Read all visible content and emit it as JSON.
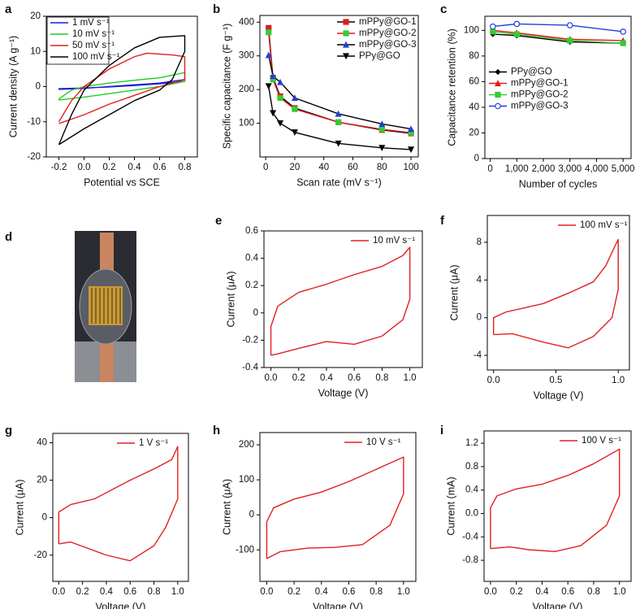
{
  "chart_data": [
    {
      "type": "line",
      "label": "a",
      "xlabel": "Potential vs SCE",
      "ylabel": "Current density (A g⁻¹)",
      "xlim": [
        -0.3,
        0.9
      ],
      "xticks": [
        -0.2,
        {
          "value": 0,
          "label": "0.0"
        },
        0.2,
        0.4,
        0.6,
        0.8
      ],
      "ylim": [
        -20,
        20
      ],
      "yticks": [
        -20,
        -10,
        0,
        10,
        20
      ],
      "legend": "upper left",
      "series": [
        {
          "name": "1 mV s⁻¹",
          "color": "#1a1adc",
          "x": [
            -0.2,
            0,
            0.2,
            0.4,
            0.6,
            0.8,
            0.8,
            0.6,
            0.4,
            0.2,
            0,
            -0.2,
            -0.2
          ],
          "values": [
            -0.8,
            -0.5,
            0,
            0.5,
            1,
            2,
            1.5,
            0.8,
            0.3,
            -0.1,
            -0.4,
            -0.6,
            -0.8
          ]
        },
        {
          "name": "10 mV s⁻¹",
          "color": "#22cc22",
          "x": [
            -0.2,
            -0.1,
            0,
            0.2,
            0.4,
            0.6,
            0.8,
            0.8,
            0.6,
            0.4,
            0.2,
            0,
            -0.2,
            -0.2
          ],
          "values": [
            -3.5,
            -1,
            0,
            1,
            1.8,
            2.5,
            4,
            1.5,
            0,
            -1,
            -2,
            -3,
            -3.8,
            -3.5
          ]
        },
        {
          "name": "50 mV s⁻¹",
          "color": "#e02020",
          "x": [
            -0.2,
            -0.1,
            0,
            0.2,
            0.4,
            0.5,
            0.7,
            0.8,
            0.8,
            0.6,
            0.4,
            0.2,
            0,
            -0.2
          ],
          "values": [
            -10,
            -4,
            0,
            5,
            8.5,
            9.5,
            9,
            8.5,
            2,
            0,
            -2.5,
            -5,
            -8,
            -10.5
          ]
        },
        {
          "name": "100 mV s⁻¹",
          "color": "#000000",
          "x": [
            -0.2,
            -0.1,
            0,
            0.2,
            0.4,
            0.6,
            0.8,
            0.8,
            0.7,
            0.6,
            0.4,
            0.2,
            0,
            -0.2
          ],
          "values": [
            -16.5,
            -8,
            -1,
            6,
            11,
            14,
            14.5,
            10,
            2,
            -1,
            -4,
            -8,
            -12,
            -16.5
          ]
        }
      ]
    },
    {
      "type": "line",
      "label": "b",
      "xlabel": "Scan rate (mV s⁻¹)",
      "ylabel": "Specific capacitance (F g⁻¹)",
      "x": [
        2,
        5,
        10,
        20,
        50,
        80,
        100
      ],
      "xlim": [
        -4,
        105
      ],
      "xticks": [
        0,
        20,
        40,
        60,
        80,
        100
      ],
      "ylim": [
        0,
        420
      ],
      "yticks": [
        100,
        200,
        300,
        400
      ],
      "legend": "upper right",
      "series": [
        {
          "name": "mPPy@GO-1",
          "color": "#e31a1c",
          "line_color": "#000000",
          "marker": "square",
          "values": [
            383,
            235,
            180,
            145,
            103,
            80,
            70
          ]
        },
        {
          "name": "mPPy@GO-2",
          "color": "#33cc33",
          "line_color": "#e31a1c",
          "marker": "square",
          "values": [
            370,
            230,
            175,
            142,
            103,
            82,
            72
          ]
        },
        {
          "name": "mPPy@GO-3",
          "color": "#1f3fdd",
          "line_color": "#000000",
          "marker": "triangle",
          "values": [
            302,
            240,
            222,
            175,
            128,
            98,
            83
          ]
        },
        {
          "name": "PPy@GO",
          "color": "#000000",
          "line_color": "#000000",
          "marker": "triangle-down",
          "values": [
            210,
            130,
            100,
            73,
            40,
            27,
            22
          ]
        }
      ]
    },
    {
      "type": "line",
      "label": "c",
      "xlabel": "Number of cycles",
      "ylabel": "Capacitance retention (%)",
      "x": [
        100,
        1000,
        3000,
        5000
      ],
      "xlim": [
        -200,
        5300
      ],
      "xticks": [
        0,
        {
          "value": 1000,
          "label": "1,000"
        },
        {
          "value": 2000,
          "label": "2,000"
        },
        {
          "value": 3000,
          "label": "3,000"
        },
        {
          "value": 4000,
          "label": "4,000"
        },
        {
          "value": 5000,
          "label": "5,000"
        }
      ],
      "ylim": [
        0,
        111
      ],
      "yticks": [
        0,
        20,
        40,
        60,
        80,
        100
      ],
      "legend": "center left",
      "series": [
        {
          "name": "PPy@GO",
          "color": "#000000",
          "marker": "diamond",
          "values": [
            97,
            96,
            91,
            90
          ]
        },
        {
          "name": "mPPy@GO-1",
          "color": "#e31a1c",
          "marker": "triangle",
          "values": [
            100,
            98,
            93,
            92
          ]
        },
        {
          "name": "mPPy@GO-2",
          "color": "#33cc33",
          "marker": "square",
          "values": [
            99,
            97,
            92,
            90
          ]
        },
        {
          "name": "mPPy@GO-3",
          "color": "#1f3fdd",
          "marker": "open-circle",
          "values": [
            103,
            105,
            104,
            99
          ]
        }
      ]
    },
    {
      "type": "line",
      "label": "e",
      "xlabel": "Voltage (V)",
      "ylabel": "Current (μA)",
      "xlim": [
        -0.05,
        1.09
      ],
      "xticks": [
        {
          "value": 0,
          "label": "0.0"
        },
        0.2,
        0.4,
        0.6,
        0.8,
        {
          "value": 1,
          "label": "1.0"
        }
      ],
      "ylim": [
        -0.4,
        0.6
      ],
      "yticks": [
        -0.4,
        -0.2,
        0,
        0.2,
        0.4,
        0.6
      ],
      "legend": "upper right",
      "series": [
        {
          "name": "10 mV s⁻¹",
          "color": "#e02020",
          "x": [
            0,
            0,
            0.05,
            0.2,
            0.4,
            0.6,
            0.8,
            0.95,
            1,
            1,
            0.95,
            0.8,
            0.6,
            0.4,
            0.2,
            0.05,
            0
          ],
          "values": [
            -0.31,
            -0.1,
            0.05,
            0.15,
            0.21,
            0.28,
            0.34,
            0.42,
            0.48,
            0.1,
            -0.05,
            -0.17,
            -0.23,
            -0.21,
            -0.26,
            -0.3,
            -0.31
          ]
        }
      ]
    },
    {
      "type": "line",
      "label": "f",
      "xlabel": "Voltage (V)",
      "ylabel": "Current (μA)",
      "xlim": [
        -0.05,
        1.09
      ],
      "xticks": [
        {
          "value": 0,
          "label": "0.0"
        },
        0.5,
        {
          "value": 1,
          "label": "1.0"
        }
      ],
      "ylim": [
        -5.55,
        10.85
      ],
      "yticks": [
        -4,
        0,
        4,
        8
      ],
      "legend": "upper right",
      "series": [
        {
          "name": "100 mV s⁻¹",
          "color": "#e02020",
          "x": [
            0,
            0,
            0.1,
            0.4,
            0.6,
            0.8,
            0.9,
            0.97,
            1,
            1,
            0.95,
            0.8,
            0.6,
            0.4,
            0.15,
            0
          ],
          "values": [
            -1.8,
            0,
            0.6,
            1.5,
            2.6,
            3.8,
            5.5,
            7.5,
            8.3,
            3,
            0,
            -2,
            -3.2,
            -2.6,
            -1.7,
            -1.8
          ]
        }
      ]
    },
    {
      "type": "line",
      "label": "g",
      "xlabel": "Voltage (V)",
      "ylabel": "Current (μA)",
      "xlim": [
        -0.05,
        1.09
      ],
      "xticks": [
        {
          "value": 0,
          "label": "0.0"
        },
        0.2,
        0.4,
        0.6,
        0.8,
        {
          "value": 1,
          "label": "1.0"
        }
      ],
      "ylim": [
        -34,
        45
      ],
      "yticks": [
        -20,
        0,
        20,
        40
      ],
      "legend": "upper right",
      "series": [
        {
          "name": "1 V s⁻¹",
          "color": "#e02020",
          "x": [
            0,
            0,
            0.1,
            0.3,
            0.6,
            0.8,
            0.95,
            1,
            1,
            0.9,
            0.8,
            0.6,
            0.4,
            0.1,
            0
          ],
          "values": [
            -14,
            3,
            7,
            10,
            20,
            26,
            31,
            38,
            10,
            -5,
            -15,
            -23,
            -20,
            -13,
            -14
          ]
        }
      ]
    },
    {
      "type": "line",
      "label": "h",
      "xlabel": "Voltage (V)",
      "ylabel": "Current (μA)",
      "xlim": [
        -0.05,
        1.09
      ],
      "xticks": [
        {
          "value": 0,
          "label": "0.0"
        },
        0.2,
        0.4,
        0.6,
        0.8,
        {
          "value": 1,
          "label": "1.0"
        }
      ],
      "ylim": [
        -190,
        235
      ],
      "yticks": [
        -100,
        0,
        100,
        200
      ],
      "legend": "upper right",
      "series": [
        {
          "name": "10 V s⁻¹",
          "color": "#e02020",
          "x": [
            0,
            0,
            0.05,
            0.2,
            0.4,
            0.6,
            0.8,
            1,
            1,
            0.9,
            0.7,
            0.5,
            0.3,
            0.1,
            0
          ],
          "values": [
            -125,
            -20,
            20,
            45,
            65,
            95,
            130,
            165,
            60,
            -30,
            -85,
            -93,
            -95,
            -105,
            -125
          ]
        }
      ]
    },
    {
      "type": "line",
      "label": "i",
      "xlabel": "Voltage (V)",
      "ylabel": "Current (mA)",
      "xlim": [
        -0.05,
        1.09
      ],
      "xticks": [
        {
          "value": 0,
          "label": "0.0"
        },
        0.2,
        0.4,
        0.6,
        0.8,
        {
          "value": 1,
          "label": "1.0"
        }
      ],
      "ylim": [
        -1.16,
        1.41
      ],
      "yticks": [
        -0.8,
        -0.4,
        {
          "value": 0,
          "label": "0.0"
        },
        0.4,
        0.8,
        1.2
      ],
      "legend": "upper right",
      "series": [
        {
          "name": "100 V s⁻¹",
          "color": "#e02020",
          "x": [
            0,
            0,
            0.05,
            0.2,
            0.4,
            0.6,
            0.8,
            1,
            1,
            0.9,
            0.7,
            0.5,
            0.3,
            0.15,
            0
          ],
          "values": [
            -0.6,
            0.1,
            0.3,
            0.42,
            0.5,
            0.65,
            0.85,
            1.1,
            0.3,
            -0.2,
            -0.55,
            -0.65,
            -0.62,
            -0.57,
            -0.6
          ]
        }
      ]
    }
  ],
  "photo": {
    "label": "d"
  }
}
